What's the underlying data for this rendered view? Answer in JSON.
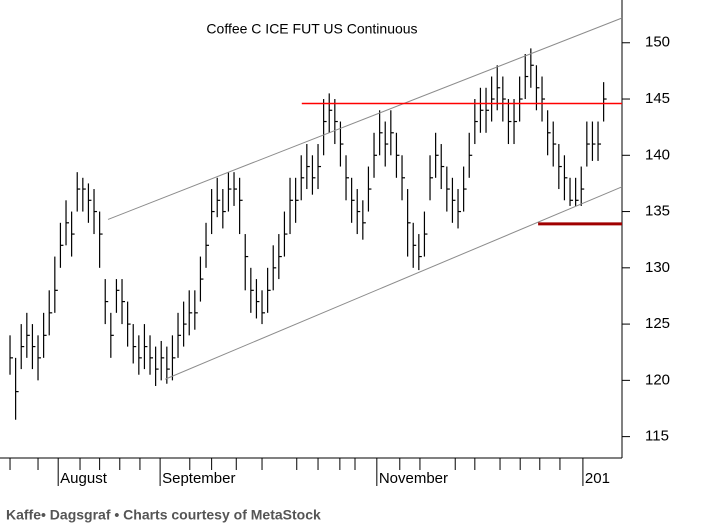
{
  "chart_data": {
    "type": "ohlc",
    "title": "Coffee C ICE FUT US Continuous",
    "x": [
      0,
      1,
      2,
      3,
      4,
      5,
      6,
      7,
      8,
      9,
      10,
      11,
      12,
      13,
      14,
      15,
      16,
      17,
      18,
      19,
      20,
      21,
      22,
      23,
      24,
      25,
      26,
      27,
      28,
      29,
      30,
      31,
      32,
      33,
      34,
      35,
      36,
      37,
      38,
      39,
      40,
      41,
      42,
      43,
      44,
      45,
      46,
      47,
      48,
      49,
      50,
      51,
      52,
      53,
      54,
      55,
      56,
      57,
      58,
      59,
      60,
      61,
      62,
      63,
      64,
      65,
      66,
      67,
      68,
      69,
      70,
      71,
      72,
      73,
      74,
      75,
      76,
      77,
      78,
      79,
      80,
      81,
      82,
      83,
      84,
      85,
      86,
      87,
      88,
      89,
      90,
      91,
      92,
      93,
      94,
      95,
      96,
      97,
      98,
      99,
      100,
      101,
      102,
      103,
      104,
      105,
      106
    ],
    "high": [
      124,
      122,
      125,
      126,
      125,
      124,
      126,
      128,
      131,
      134,
      136,
      135,
      138.5,
      138,
      137.5,
      137,
      135,
      129,
      126,
      129,
      129,
      127,
      125,
      124,
      125,
      124,
      123,
      123.5,
      123,
      124,
      126,
      127,
      128,
      128,
      131,
      134,
      137,
      138,
      137,
      138.5,
      138.5,
      138,
      133,
      130,
      129,
      128,
      130,
      132,
      133,
      135,
      138,
      138,
      140,
      141,
      140,
      141,
      145,
      145.5,
      145,
      143,
      140,
      138,
      137,
      136,
      139,
      142,
      144,
      143,
      144,
      142,
      140,
      137,
      134,
      133,
      135,
      140,
      142,
      141,
      139,
      138,
      137,
      139,
      142,
      145,
      146,
      146,
      147,
      148,
      147,
      145,
      145,
      147,
      149,
      149.5,
      148,
      147,
      144,
      143,
      141,
      140,
      138,
      138,
      139,
      143,
      143,
      143,
      146.5
    ],
    "low": [
      120.5,
      116.5,
      121,
      122,
      121,
      120,
      122,
      124,
      126,
      130,
      132,
      131,
      135,
      135,
      134,
      133,
      130,
      125,
      122,
      126,
      125,
      123,
      121.5,
      120.5,
      121,
      120.5,
      119.5,
      120,
      119.7,
      120,
      122,
      123,
      124,
      124.5,
      127,
      130,
      133,
      134.5,
      133.5,
      135,
      135.5,
      133,
      128,
      126,
      125.5,
      125,
      126,
      128,
      129,
      131,
      133,
      134,
      136,
      137,
      136.5,
      137,
      140,
      142,
      141,
      139,
      136,
      134,
      133,
      132.5,
      135,
      138,
      140,
      139,
      140,
      138,
      136,
      131,
      130,
      129.8,
      131,
      136,
      138,
      137,
      135,
      134,
      133.5,
      135,
      138,
      141,
      142,
      142,
      143,
      144,
      143,
      141,
      141,
      143,
      145,
      146,
      144,
      143,
      140,
      139,
      137,
      136,
      135.5,
      135.5,
      135.5,
      139,
      139.5,
      139.5,
      143
    ],
    "close": [
      122,
      119,
      123,
      124,
      123,
      122,
      124,
      126,
      128,
      132,
      134,
      133,
      137,
      137,
      136,
      135,
      133,
      127,
      124,
      128,
      127,
      125,
      123,
      122,
      123,
      122,
      121,
      122,
      121,
      122,
      124,
      125,
      126,
      126,
      129,
      132,
      135,
      136,
      135,
      137,
      137,
      136,
      131,
      128,
      127,
      126,
      128,
      130,
      131,
      133,
      136,
      136,
      138,
      139,
      138,
      139,
      143,
      144,
      143,
      141,
      138,
      136,
      135,
      134,
      137,
      140,
      142,
      141,
      142,
      140,
      138,
      134,
      132,
      131,
      133,
      138,
      140,
      139,
      137,
      136,
      135,
      137,
      140,
      143,
      144,
      144,
      145,
      146,
      145,
      143,
      143,
      145,
      147,
      148,
      146,
      145,
      142,
      141,
      139,
      138,
      136,
      136,
      137,
      141,
      141,
      141,
      145
    ],
    "color": "#000000",
    "lines": [
      {
        "x": [
          17.5,
          109.28
        ],
        "y": [
          134.3,
          152.2
        ],
        "color": "#8c8c8c"
      },
      {
        "x": [
          27.7,
          109.28
        ],
        "y": [
          120.1,
          137.2
        ],
        "color": "#8c8c8c"
      },
      {
        "x": [
          52.1,
          109.28
        ],
        "y": [
          144.6,
          144.6
        ],
        "color": "#ff0000"
      },
      {
        "x": [
          94.3,
          109.28
        ],
        "y": [
          133.9,
          133.9
        ],
        "color": "#a00000"
      }
    ],
    "xlim": [
      -1.79,
      109.28
    ],
    "ylim": [
      113.1,
      153.8
    ],
    "yticks": [
      115,
      120,
      125,
      130,
      135,
      140,
      145,
      150
    ],
    "xticks": [
      {
        "value": 8.6,
        "label": "August"
      },
      {
        "value": 26.8,
        "label": "September"
      },
      {
        "value": 65.5,
        "label": "November"
      },
      {
        "value": 102.3,
        "label": "201"
      }
    ],
    "xminor_ticks": [
      0,
      5,
      12.5,
      16,
      19.6,
      23.2,
      32.1,
      36,
      40.4,
      45,
      51.2,
      55,
      58.9,
      61.6,
      69.6,
      73.2,
      79.5,
      83,
      87.5,
      91.1,
      94.6,
      98.2
    ]
  },
  "footer": "Kaffe• Dagsgraf • Charts courtesy of MetaStock"
}
